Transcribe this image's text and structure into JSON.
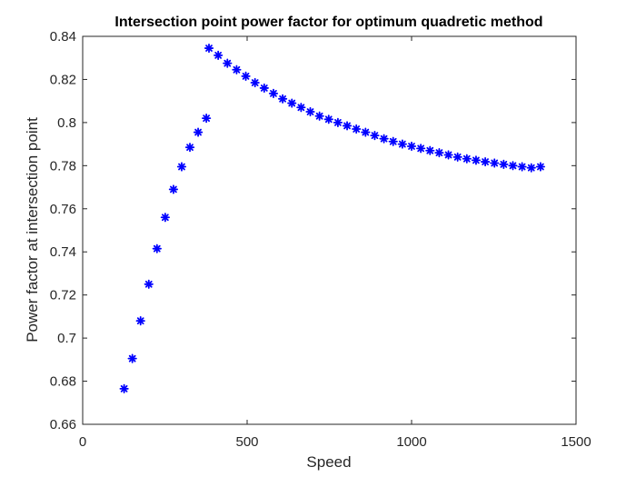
{
  "chart_data": {
    "type": "scatter",
    "title": "Intersection point power factor for optimum quadretic method",
    "xlabel": "Speed",
    "ylabel": "Power factor at intersection point",
    "xlim": [
      0,
      1500
    ],
    "ylim": [
      0.66,
      0.84
    ],
    "xticks": [
      0,
      500,
      1000,
      1500
    ],
    "xtick_labels": [
      "0",
      "500",
      "1000",
      "1500"
    ],
    "yticks": [
      0.66,
      0.68,
      0.7,
      0.72,
      0.74,
      0.76,
      0.78,
      0.8,
      0.82,
      0.84
    ],
    "ytick_labels": [
      "0.66",
      "0.68",
      "0.7",
      "0.72",
      "0.74",
      "0.76",
      "0.78",
      "0.8",
      "0.82",
      "0.84"
    ],
    "grid": false,
    "marker": "asterisk",
    "marker_color": "#0000ff",
    "series": [
      {
        "x": [
          126,
          151,
          176,
          201,
          226,
          251,
          276,
          301,
          326,
          351,
          376,
          384,
          412,
          440,
          468,
          496,
          524,
          552,
          580,
          608,
          636,
          664,
          692,
          720,
          748,
          776,
          804,
          832,
          860,
          888,
          916,
          944,
          972,
          1000,
          1028,
          1056,
          1084,
          1112,
          1140,
          1168,
          1196,
          1224,
          1252,
          1280,
          1308,
          1336,
          1364,
          1392
        ],
        "y": [
          0.6765,
          0.6905,
          0.708,
          0.725,
          0.7415,
          0.756,
          0.769,
          0.7795,
          0.7885,
          0.7955,
          0.802,
          0.8345,
          0.8312,
          0.8275,
          0.8245,
          0.8215,
          0.8185,
          0.816,
          0.8135,
          0.811,
          0.809,
          0.807,
          0.805,
          0.803,
          0.8015,
          0.8,
          0.7985,
          0.797,
          0.7955,
          0.794,
          0.7925,
          0.7912,
          0.79,
          0.789,
          0.788,
          0.787,
          0.786,
          0.785,
          0.784,
          0.7832,
          0.7825,
          0.7818,
          0.7812,
          0.7806,
          0.78,
          0.7795,
          0.779,
          0.7795
        ]
      }
    ]
  }
}
